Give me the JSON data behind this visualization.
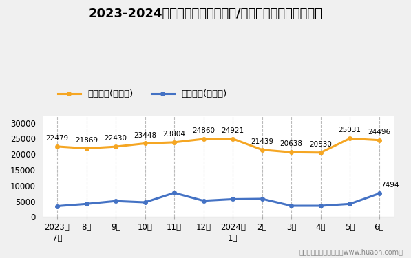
{
  "title": "2023-2024年荆州市（境内目的地/货源地）进、出口额统计",
  "xlabel_labels": [
    "2023年\n7月",
    "8月",
    "9月",
    "10月",
    "11月",
    "12月",
    "2024年\n1月",
    "2月",
    "3月",
    "4月",
    "5月",
    "6月"
  ],
  "export_values": [
    22479,
    21869,
    22430,
    23448,
    23804,
    24860,
    24921,
    21439,
    20638,
    20530,
    25031,
    24496
  ],
  "import_values": [
    3500,
    4200,
    5100,
    4700,
    7700,
    5200,
    5700,
    5800,
    3600,
    3600,
    4200,
    7494
  ],
  "export_label": "出口总额(万美元)",
  "import_label": "进口总额(万美元)",
  "export_color": "#f5a623",
  "import_color": "#4472c4",
  "ylim": [
    0,
    32000
  ],
  "yticks": [
    0,
    5000,
    10000,
    15000,
    20000,
    25000,
    30000
  ],
  "background_color": "#f0f0f0",
  "plot_bg_color": "#ffffff",
  "title_fontsize": 13,
  "legend_fontsize": 9.5,
  "tick_fontsize": 8.5,
  "annotation_fontsize": 7.5,
  "footer_text": "制图：华经产业研究院（www.huaon.com）",
  "line_width": 2.2,
  "grid_color": "#bbbbbb",
  "marker_size": 4
}
